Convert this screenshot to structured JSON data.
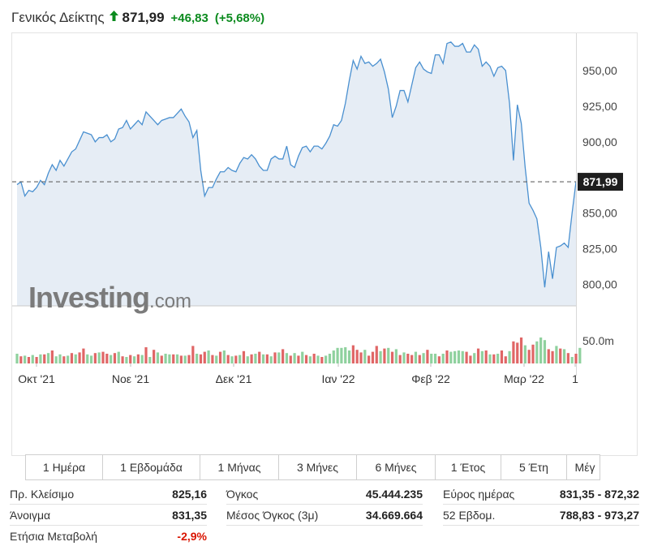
{
  "header": {
    "name": "Γενικός Δείκτης",
    "price": "871,99",
    "change": "+46,83",
    "change_pct": "(+5,68%)",
    "direction_icon": "arrow-up-icon",
    "up_color": "#0c8b1f"
  },
  "watermark": {
    "brand": "Investing",
    "suffix": ".com"
  },
  "chart_data": {
    "type": "area",
    "title": "",
    "xlabel": "",
    "ylabel": "",
    "ylim": [
      785,
      975
    ],
    "yticks": [
      800,
      825,
      850,
      900,
      925,
      950
    ],
    "ytick_labels": [
      "800,00",
      "825,00",
      "850,00",
      "900,00",
      "925,00",
      "950,00"
    ],
    "last_value": 871.99,
    "last_value_label": "871,99",
    "x_labels": [
      "Οκτ '21",
      "Νοε '21",
      "Δεκ '21",
      "Ιαν '22",
      "Φεβ '22",
      "Μαρ '22",
      "1"
    ],
    "series": [
      {
        "values": [
          870,
          872,
          862,
          866,
          865,
          868,
          873,
          870,
          878,
          884,
          880,
          887,
          883,
          888,
          893,
          895,
          901,
          907,
          906,
          905,
          900,
          903,
          903,
          905,
          900,
          902,
          909,
          910,
          915,
          909,
          912,
          915,
          912,
          921,
          918,
          915,
          912,
          915,
          916,
          917,
          917,
          920,
          923,
          918,
          914,
          903,
          908,
          880,
          862,
          868,
          868,
          874,
          879,
          879,
          882,
          880,
          879,
          885,
          889,
          888,
          891,
          888,
          883,
          880,
          880,
          888,
          890,
          888,
          888,
          897,
          884,
          882,
          890,
          896,
          897,
          893,
          897,
          897,
          895,
          899,
          904,
          912,
          911,
          915,
          927,
          943,
          957,
          951,
          960,
          955,
          956,
          953,
          955,
          958,
          949,
          937,
          917,
          925,
          936,
          936,
          928,
          940,
          952,
          956,
          951,
          949,
          948,
          961,
          961,
          955,
          969,
          970,
          967,
          967,
          969,
          963,
          963,
          968,
          965,
          953,
          956,
          953,
          946,
          952,
          953,
          950,
          927,
          887,
          926,
          913,
          882,
          857,
          852,
          846,
          826,
          798,
          823,
          804,
          826,
          827,
          829,
          826,
          850,
          872
        ]
      }
    ],
    "volume": {
      "label": "50.0m",
      "values": [
        15,
        11,
        12,
        10,
        13,
        10,
        14,
        14,
        16,
        20,
        11,
        14,
        11,
        12,
        16,
        14,
        17,
        23,
        14,
        12,
        16,
        17,
        18,
        15,
        13,
        16,
        18,
        11,
        10,
        13,
        11,
        14,
        13,
        25,
        10,
        21,
        17,
        12,
        15,
        14,
        14,
        14,
        12,
        12,
        13,
        27,
        15,
        14,
        18,
        20,
        13,
        12,
        18,
        20,
        13,
        11,
        12,
        13,
        19,
        11,
        14,
        15,
        18,
        14,
        14,
        11,
        17,
        17,
        22,
        16,
        12,
        16,
        12,
        18,
        13,
        11,
        15,
        12,
        10,
        12,
        15,
        20,
        24,
        24,
        25,
        20,
        28,
        21,
        17,
        21,
        12,
        18,
        27,
        19,
        23,
        24,
        18,
        22,
        13,
        17,
        15,
        13,
        18,
        13,
        16,
        21,
        15,
        15,
        11,
        15,
        20,
        18,
        19,
        20,
        19,
        18,
        12,
        16,
        23,
        19,
        20,
        14,
        14,
        15,
        20,
        11,
        19,
        34,
        32,
        40,
        28,
        21,
        29,
        34,
        40,
        36,
        22,
        19,
        27,
        23,
        22,
        16,
        10,
        15,
        24
      ],
      "up": [
        1,
        0,
        1,
        0,
        1,
        0,
        1,
        0,
        1,
        0,
        1,
        1,
        0,
        1,
        0,
        1,
        0,
        0,
        1,
        1,
        0,
        1,
        0,
        0,
        1,
        0,
        1,
        0,
        1,
        0,
        1,
        0,
        1,
        0,
        1,
        0,
        1,
        0,
        1,
        1,
        0,
        1,
        0,
        1,
        0,
        0,
        1,
        0,
        0,
        1,
        0,
        1,
        0,
        1,
        0,
        1,
        0,
        1,
        0,
        1,
        0,
        1,
        0,
        1,
        0,
        1,
        0,
        1,
        0,
        1,
        0,
        1,
        0,
        1,
        0,
        1,
        0,
        1,
        0,
        1,
        1,
        1,
        1,
        1,
        1,
        1,
        0,
        0,
        0,
        1,
        0,
        0,
        0,
        1,
        0,
        1,
        0,
        1,
        0,
        1,
        0,
        0,
        1,
        0,
        1,
        0,
        1,
        1,
        0,
        1,
        0,
        1,
        1,
        1,
        1,
        0,
        0,
        1,
        0,
        1,
        0,
        1,
        0,
        1,
        0,
        0,
        1,
        0,
        0,
        0,
        1,
        0,
        0,
        1,
        1,
        1,
        0,
        0,
        1,
        0,
        1,
        0,
        1,
        0,
        1
      ],
      "up_color": "#8fd19e",
      "down_color": "#e06666"
    }
  },
  "ranges": [
    "1 Ημέρα",
    "1 Εβδομάδα",
    "1 Μήνας",
    "3 Μήνες",
    "6 Μήνες",
    "1 Έτος",
    "5 Έτη",
    "Μέγ"
  ],
  "stats": [
    {
      "label": "Πρ. Κλείσιμο",
      "value": "825,16"
    },
    {
      "label": "Όγκος",
      "value": "45.444.235"
    },
    {
      "label": "Εύρος ημέρας",
      "value": "831,35 - 872,32"
    },
    {
      "label": "Άνοιγμα",
      "value": "831,35"
    },
    {
      "label": "Μέσος Όγκος (3μ)",
      "value": "34.669.664"
    },
    {
      "label": "52 Εβδομ.",
      "value": "788,83 - 973,27"
    },
    {
      "label": "Ετήσια Μεταβολή",
      "value": "-2,9%",
      "negative": true
    }
  ],
  "colors": {
    "line": "#4a90d0",
    "area": "#e6edf5",
    "negative": "#d91400"
  }
}
